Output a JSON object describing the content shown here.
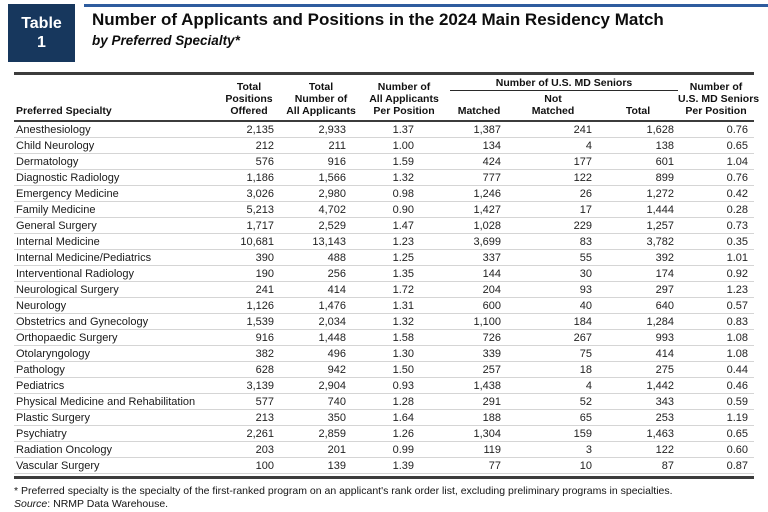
{
  "badge": {
    "label": "Table",
    "number": "1"
  },
  "title": "Number of Applicants and Positions in the 2024 Main Residency Match",
  "subtitle": "by Preferred Specialty*",
  "colors": {
    "navy": "#17375D",
    "accent_line": "#2E5C9E",
    "rule_dark": "#3C3C3C",
    "row_line": "#D5D5D5",
    "text": "#1A1A1A"
  },
  "table": {
    "columns": {
      "specialty": "Preferred Specialty",
      "positions_offered": "Total\nPositions\nOffered",
      "all_applicants": "Total\nNumber of\nAll Applicants",
      "applicants_per_position": "Number of\nAll Applicants\nPer Position",
      "md_seniors_group": "Number of U.S. MD Seniors",
      "matched": "Matched",
      "not_matched": "Not\nMatched",
      "md_total": "Total",
      "seniors_per_position": "Number of\nU.S. MD Seniors\nPer Position"
    },
    "rows": [
      [
        "Anesthesiology",
        "2,135",
        "2,933",
        "1.37",
        "1,387",
        "241",
        "1,628",
        "0.76"
      ],
      [
        "Child Neurology",
        "212",
        "211",
        "1.00",
        "134",
        "4",
        "138",
        "0.65"
      ],
      [
        "Dermatology",
        "576",
        "916",
        "1.59",
        "424",
        "177",
        "601",
        "1.04"
      ],
      [
        "Diagnostic Radiology",
        "1,186",
        "1,566",
        "1.32",
        "777",
        "122",
        "899",
        "0.76"
      ],
      [
        "Emergency Medicine",
        "3,026",
        "2,980",
        "0.98",
        "1,246",
        "26",
        "1,272",
        "0.42"
      ],
      [
        "Family Medicine",
        "5,213",
        "4,702",
        "0.90",
        "1,427",
        "17",
        "1,444",
        "0.28"
      ],
      [
        "General Surgery",
        "1,717",
        "2,529",
        "1.47",
        "1,028",
        "229",
        "1,257",
        "0.73"
      ],
      [
        "Internal Medicine",
        "10,681",
        "13,143",
        "1.23",
        "3,699",
        "83",
        "3,782",
        "0.35"
      ],
      [
        "Internal Medicine/Pediatrics",
        "390",
        "488",
        "1.25",
        "337",
        "55",
        "392",
        "1.01"
      ],
      [
        "Interventional Radiology",
        "190",
        "256",
        "1.35",
        "144",
        "30",
        "174",
        "0.92"
      ],
      [
        "Neurological Surgery",
        "241",
        "414",
        "1.72",
        "204",
        "93",
        "297",
        "1.23"
      ],
      [
        "Neurology",
        "1,126",
        "1,476",
        "1.31",
        "600",
        "40",
        "640",
        "0.57"
      ],
      [
        "Obstetrics and Gynecology",
        "1,539",
        "2,034",
        "1.32",
        "1,100",
        "184",
        "1,284",
        "0.83"
      ],
      [
        "Orthopaedic Surgery",
        "916",
        "1,448",
        "1.58",
        "726",
        "267",
        "993",
        "1.08"
      ],
      [
        "Otolaryngology",
        "382",
        "496",
        "1.30",
        "339",
        "75",
        "414",
        "1.08"
      ],
      [
        "Pathology",
        "628",
        "942",
        "1.50",
        "257",
        "18",
        "275",
        "0.44"
      ],
      [
        "Pediatrics",
        "3,139",
        "2,904",
        "0.93",
        "1,438",
        "4",
        "1,442",
        "0.46"
      ],
      [
        "Physical Medicine and Rehabilitation",
        "577",
        "740",
        "1.28",
        "291",
        "52",
        "343",
        "0.59"
      ],
      [
        "Plastic Surgery",
        "213",
        "350",
        "1.64",
        "188",
        "65",
        "253",
        "1.19"
      ],
      [
        "Psychiatry",
        "2,261",
        "2,859",
        "1.26",
        "1,304",
        "159",
        "1,463",
        "0.65"
      ],
      [
        "Radiation Oncology",
        "203",
        "201",
        "0.99",
        "119",
        "3",
        "122",
        "0.60"
      ],
      [
        "Vascular Surgery",
        "100",
        "139",
        "1.39",
        "77",
        "10",
        "87",
        "0.87"
      ]
    ]
  },
  "footnotes": {
    "asterisk": "* Preferred specialty is the specialty of the first-ranked program on an applicant's rank order list, excluding preliminary programs in specialties.",
    "source_label": "Source",
    "source_text": ": NRMP Data Warehouse."
  }
}
